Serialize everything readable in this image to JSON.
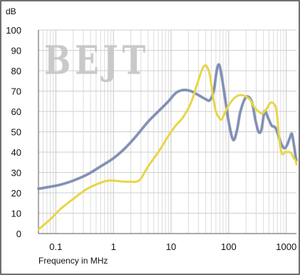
{
  "chart_data": {
    "type": "line",
    "title": "",
    "xlabel": "Frequency in MHz",
    "ylabel": "dB",
    "x_scale": "log",
    "xlim": [
      0.05,
      1500
    ],
    "ylim": [
      0,
      100
    ],
    "grid": true,
    "watermark": "BEJT",
    "colors": {
      "blue": "#7f8fb6",
      "yellow": "#e7d646"
    },
    "x_ticks": [
      {
        "value": 0.1,
        "label": "0.1"
      },
      {
        "value": 1,
        "label": "1"
      },
      {
        "value": 10,
        "label": "10"
      },
      {
        "value": 100,
        "label": "100"
      },
      {
        "value": 1000,
        "label": "1000"
      }
    ],
    "y_ticks": [
      {
        "value": 0,
        "label": "0"
      },
      {
        "value": 10,
        "label": "10"
      },
      {
        "value": 20,
        "label": "20"
      },
      {
        "value": 30,
        "label": "30"
      },
      {
        "value": 40,
        "label": "40"
      },
      {
        "value": 50,
        "label": "50"
      },
      {
        "value": 60,
        "label": "60"
      },
      {
        "value": 70,
        "label": "70"
      },
      {
        "value": 80,
        "label": "80"
      },
      {
        "value": 90,
        "label": "90"
      },
      {
        "value": 100,
        "label": "100"
      }
    ],
    "series": [
      {
        "color": "blue",
        "x": [
          0.05,
          0.08,
          0.12,
          0.2,
          0.35,
          0.6,
          1,
          1.6,
          2.5,
          4,
          6,
          9,
          12,
          16,
          22,
          30,
          40,
          47,
          55,
          62,
          68,
          75,
          85,
          100,
          120,
          140,
          160,
          200,
          250,
          290,
          330,
          370,
          420,
          480,
          560,
          650,
          750,
          850,
          950,
          1050,
          1150,
          1250,
          1350,
          1450,
          1500
        ],
        "y": [
          22,
          23,
          24,
          26,
          29,
          33,
          37,
          42,
          48,
          55,
          60,
          65,
          69,
          70.5,
          70,
          68,
          66,
          65.5,
          70,
          80,
          83,
          78,
          68,
          55,
          46,
          51,
          60,
          67,
          65,
          56,
          50,
          51,
          60,
          57,
          53,
          52,
          47,
          43,
          42,
          44,
          47,
          49,
          44,
          38,
          36
        ]
      },
      {
        "color": "yellow",
        "x": [
          0.05,
          0.08,
          0.12,
          0.2,
          0.35,
          0.6,
          0.8,
          1,
          1.5,
          2,
          2.5,
          3,
          4,
          6,
          9,
          12,
          16,
          22,
          28,
          34,
          38,
          42,
          47,
          53,
          60,
          68,
          75,
          85,
          100,
          130,
          170,
          230,
          280,
          330,
          380,
          450,
          520,
          600,
          680,
          750,
          820,
          880,
          950,
          1050,
          1150,
          1250,
          1350,
          1450,
          1500
        ],
        "y": [
          2,
          7,
          12,
          17,
          22,
          25,
          26,
          26,
          25.5,
          25.5,
          25.5,
          27,
          33,
          40,
          48,
          53,
          57,
          64,
          73,
          80,
          82.5,
          82,
          78,
          68,
          60,
          57,
          56,
          59,
          63,
          67,
          68,
          66,
          62,
          60,
          59,
          61,
          64,
          64,
          60,
          47,
          40,
          39,
          40,
          40,
          40,
          39,
          37,
          36,
          34
        ]
      }
    ]
  }
}
